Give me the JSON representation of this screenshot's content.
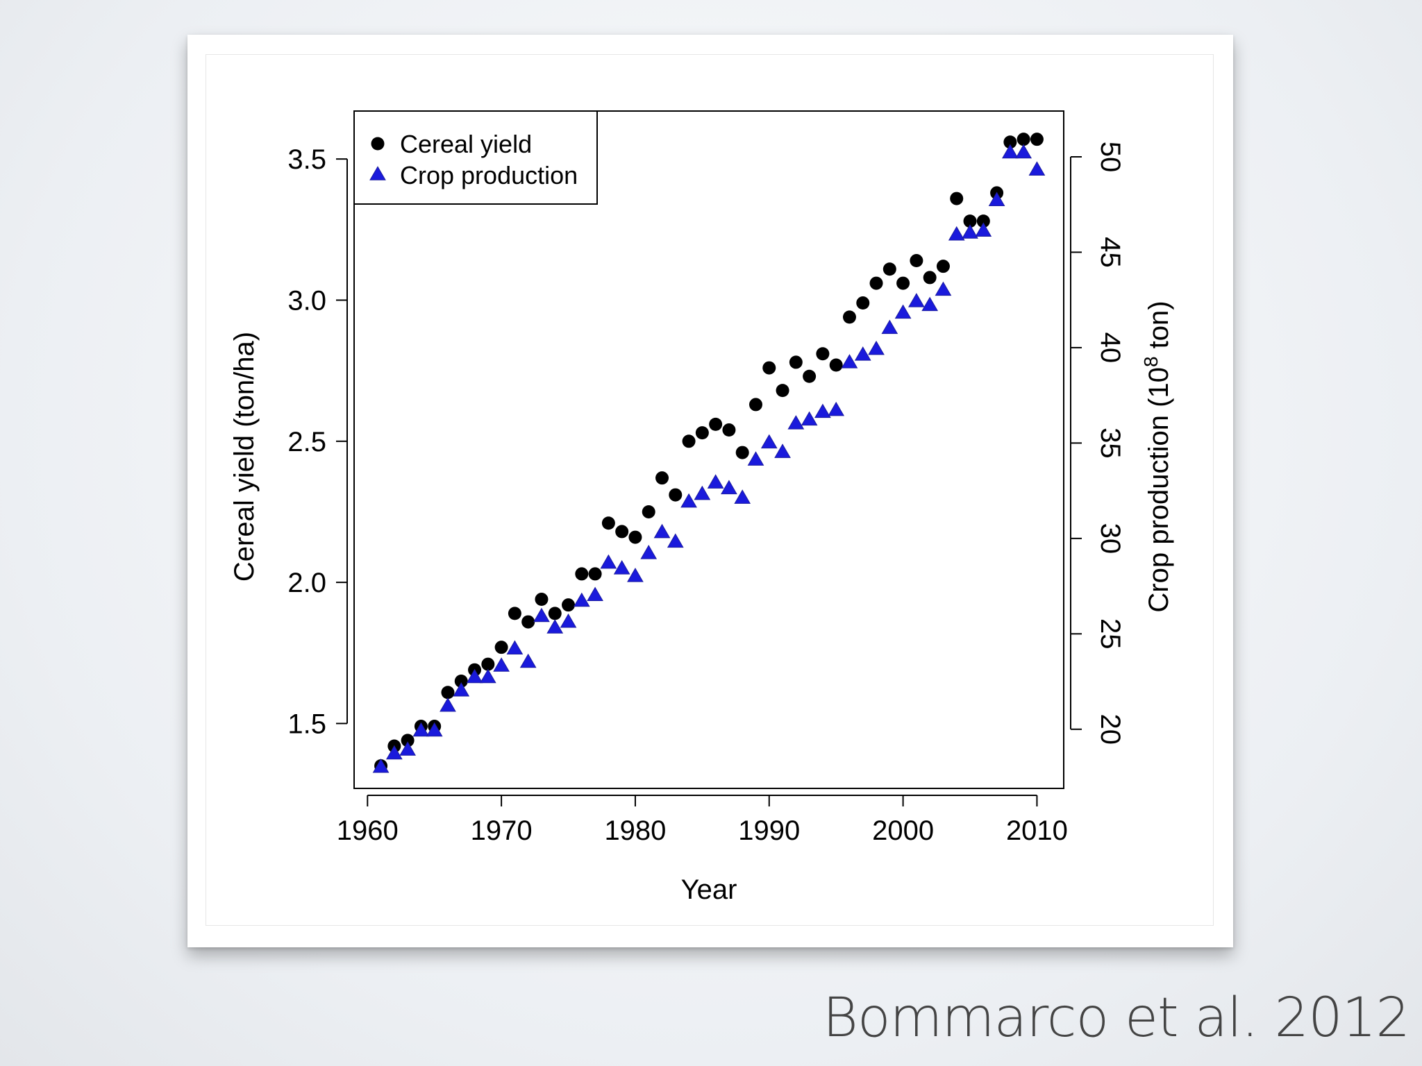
{
  "citation": "Bommarco et al. 2012",
  "chart_data": {
    "type": "scatter",
    "title": "",
    "xlabel": "Year",
    "ylabel_left": "Cereal yield (ton/ha)",
    "ylabel_right": "Crop production (10^8 ton)",
    "ylabel_right_parts": {
      "before": "Crop production (10",
      "sup": "8",
      "after": " ton)"
    },
    "xlim": [
      1959,
      2012
    ],
    "x_ticks": [
      1960,
      1970,
      1980,
      1990,
      2000,
      2010
    ],
    "ylim_left": [
      1.27,
      3.67
    ],
    "y_ticks_left": [
      "1.5",
      "2.0",
      "2.5",
      "3.0",
      "3.5"
    ],
    "ylim_right": [
      16.9,
      52.4
    ],
    "y_ticks_right": [
      "20",
      "25",
      "30",
      "35",
      "40",
      "45",
      "50"
    ],
    "legend": {
      "position": "top-left"
    },
    "grid": false,
    "series": [
      {
        "name": "Cereal yield",
        "axis": "left",
        "marker": "circle",
        "color": "#000000",
        "points": [
          [
            1961,
            1.35
          ],
          [
            1962,
            1.42
          ],
          [
            1963,
            1.44
          ],
          [
            1964,
            1.49
          ],
          [
            1965,
            1.49
          ],
          [
            1966,
            1.61
          ],
          [
            1967,
            1.65
          ],
          [
            1968,
            1.69
          ],
          [
            1969,
            1.71
          ],
          [
            1970,
            1.77
          ],
          [
            1971,
            1.89
          ],
          [
            1972,
            1.86
          ],
          [
            1973,
            1.94
          ],
          [
            1974,
            1.89
          ],
          [
            1975,
            1.92
          ],
          [
            1976,
            2.03
          ],
          [
            1977,
            2.03
          ],
          [
            1978,
            2.21
          ],
          [
            1979,
            2.18
          ],
          [
            1980,
            2.16
          ],
          [
            1981,
            2.25
          ],
          [
            1982,
            2.37
          ],
          [
            1983,
            2.31
          ],
          [
            1984,
            2.5
          ],
          [
            1985,
            2.53
          ],
          [
            1986,
            2.56
          ],
          [
            1987,
            2.54
          ],
          [
            1988,
            2.46
          ],
          [
            1989,
            2.63
          ],
          [
            1990,
            2.76
          ],
          [
            1991,
            2.68
          ],
          [
            1992,
            2.78
          ],
          [
            1993,
            2.73
          ],
          [
            1994,
            2.81
          ],
          [
            1995,
            2.77
          ],
          [
            1996,
            2.94
          ],
          [
            1997,
            2.99
          ],
          [
            1998,
            3.06
          ],
          [
            1999,
            3.11
          ],
          [
            2000,
            3.06
          ],
          [
            2001,
            3.14
          ],
          [
            2002,
            3.08
          ],
          [
            2003,
            3.12
          ],
          [
            2004,
            3.36
          ],
          [
            2005,
            3.28
          ],
          [
            2006,
            3.28
          ],
          [
            2007,
            3.38
          ],
          [
            2008,
            3.56
          ],
          [
            2009,
            3.57
          ],
          [
            2010,
            3.57
          ]
        ]
      },
      {
        "name": "Crop production",
        "axis": "right",
        "marker": "triangle",
        "color": "#1a1adc",
        "points": [
          [
            1961,
            18.0
          ],
          [
            1962,
            18.7
          ],
          [
            1963,
            18.9
          ],
          [
            1964,
            19.9
          ],
          [
            1965,
            19.9
          ],
          [
            1966,
            21.2
          ],
          [
            1967,
            22.0
          ],
          [
            1968,
            22.7
          ],
          [
            1969,
            22.7
          ],
          [
            1970,
            23.3
          ],
          [
            1971,
            24.2
          ],
          [
            1972,
            23.5
          ],
          [
            1973,
            25.9
          ],
          [
            1974,
            25.3
          ],
          [
            1975,
            25.6
          ],
          [
            1976,
            26.7
          ],
          [
            1977,
            27.0
          ],
          [
            1978,
            28.7
          ],
          [
            1979,
            28.4
          ],
          [
            1980,
            28.0
          ],
          [
            1981,
            29.2
          ],
          [
            1982,
            30.3
          ],
          [
            1983,
            29.8
          ],
          [
            1984,
            31.9
          ],
          [
            1985,
            32.3
          ],
          [
            1986,
            32.9
          ],
          [
            1987,
            32.6
          ],
          [
            1988,
            32.1
          ],
          [
            1989,
            34.1
          ],
          [
            1990,
            35.0
          ],
          [
            1991,
            34.5
          ],
          [
            1992,
            36.0
          ],
          [
            1993,
            36.2
          ],
          [
            1994,
            36.6
          ],
          [
            1995,
            36.7
          ],
          [
            1996,
            39.2
          ],
          [
            1997,
            39.6
          ],
          [
            1998,
            39.9
          ],
          [
            1999,
            41.0
          ],
          [
            2000,
            41.8
          ],
          [
            2001,
            42.4
          ],
          [
            2002,
            42.2
          ],
          [
            2003,
            43.0
          ],
          [
            2004,
            45.9
          ],
          [
            2005,
            46.0
          ],
          [
            2006,
            46.1
          ],
          [
            2007,
            47.7
          ],
          [
            2008,
            50.2
          ],
          [
            2009,
            50.2
          ],
          [
            2010,
            49.3
          ]
        ]
      }
    ]
  }
}
